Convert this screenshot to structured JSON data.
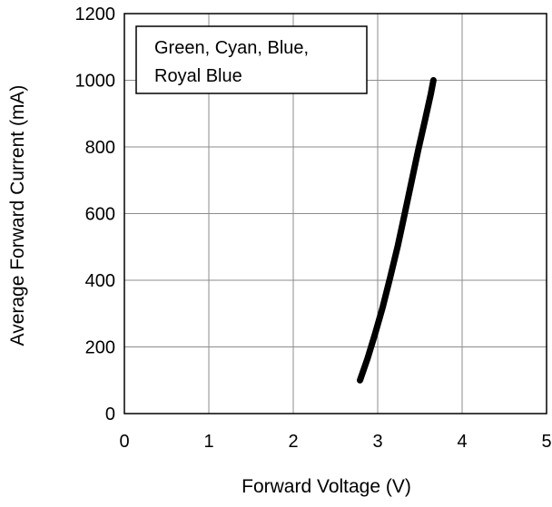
{
  "chart_data": {
    "type": "line",
    "title": "",
    "xlabel": "Forward Voltage (V)",
    "ylabel": "Average Forward Current (mA)",
    "xlim": [
      0,
      5
    ],
    "ylim": [
      0,
      1200
    ],
    "x_ticks": [
      "0",
      "1",
      "2",
      "3",
      "4",
      "5"
    ],
    "y_ticks": [
      "0",
      "200",
      "400",
      "600",
      "800",
      "1000",
      "1200"
    ],
    "grid": true,
    "legend": {
      "placement": "top-left",
      "lines": [
        "Green, Cyan, Blue,",
        "Royal Blue"
      ]
    },
    "series": [
      {
        "color": "#000000",
        "x": [
          2.79,
          2.88,
          2.97,
          3.06,
          3.15,
          3.24,
          3.32,
          3.4,
          3.48,
          3.56,
          3.63,
          3.66
        ],
        "y": [
          100,
          165,
          240,
          320,
          410,
          505,
          600,
          695,
          790,
          880,
          960,
          1000
        ]
      }
    ]
  }
}
